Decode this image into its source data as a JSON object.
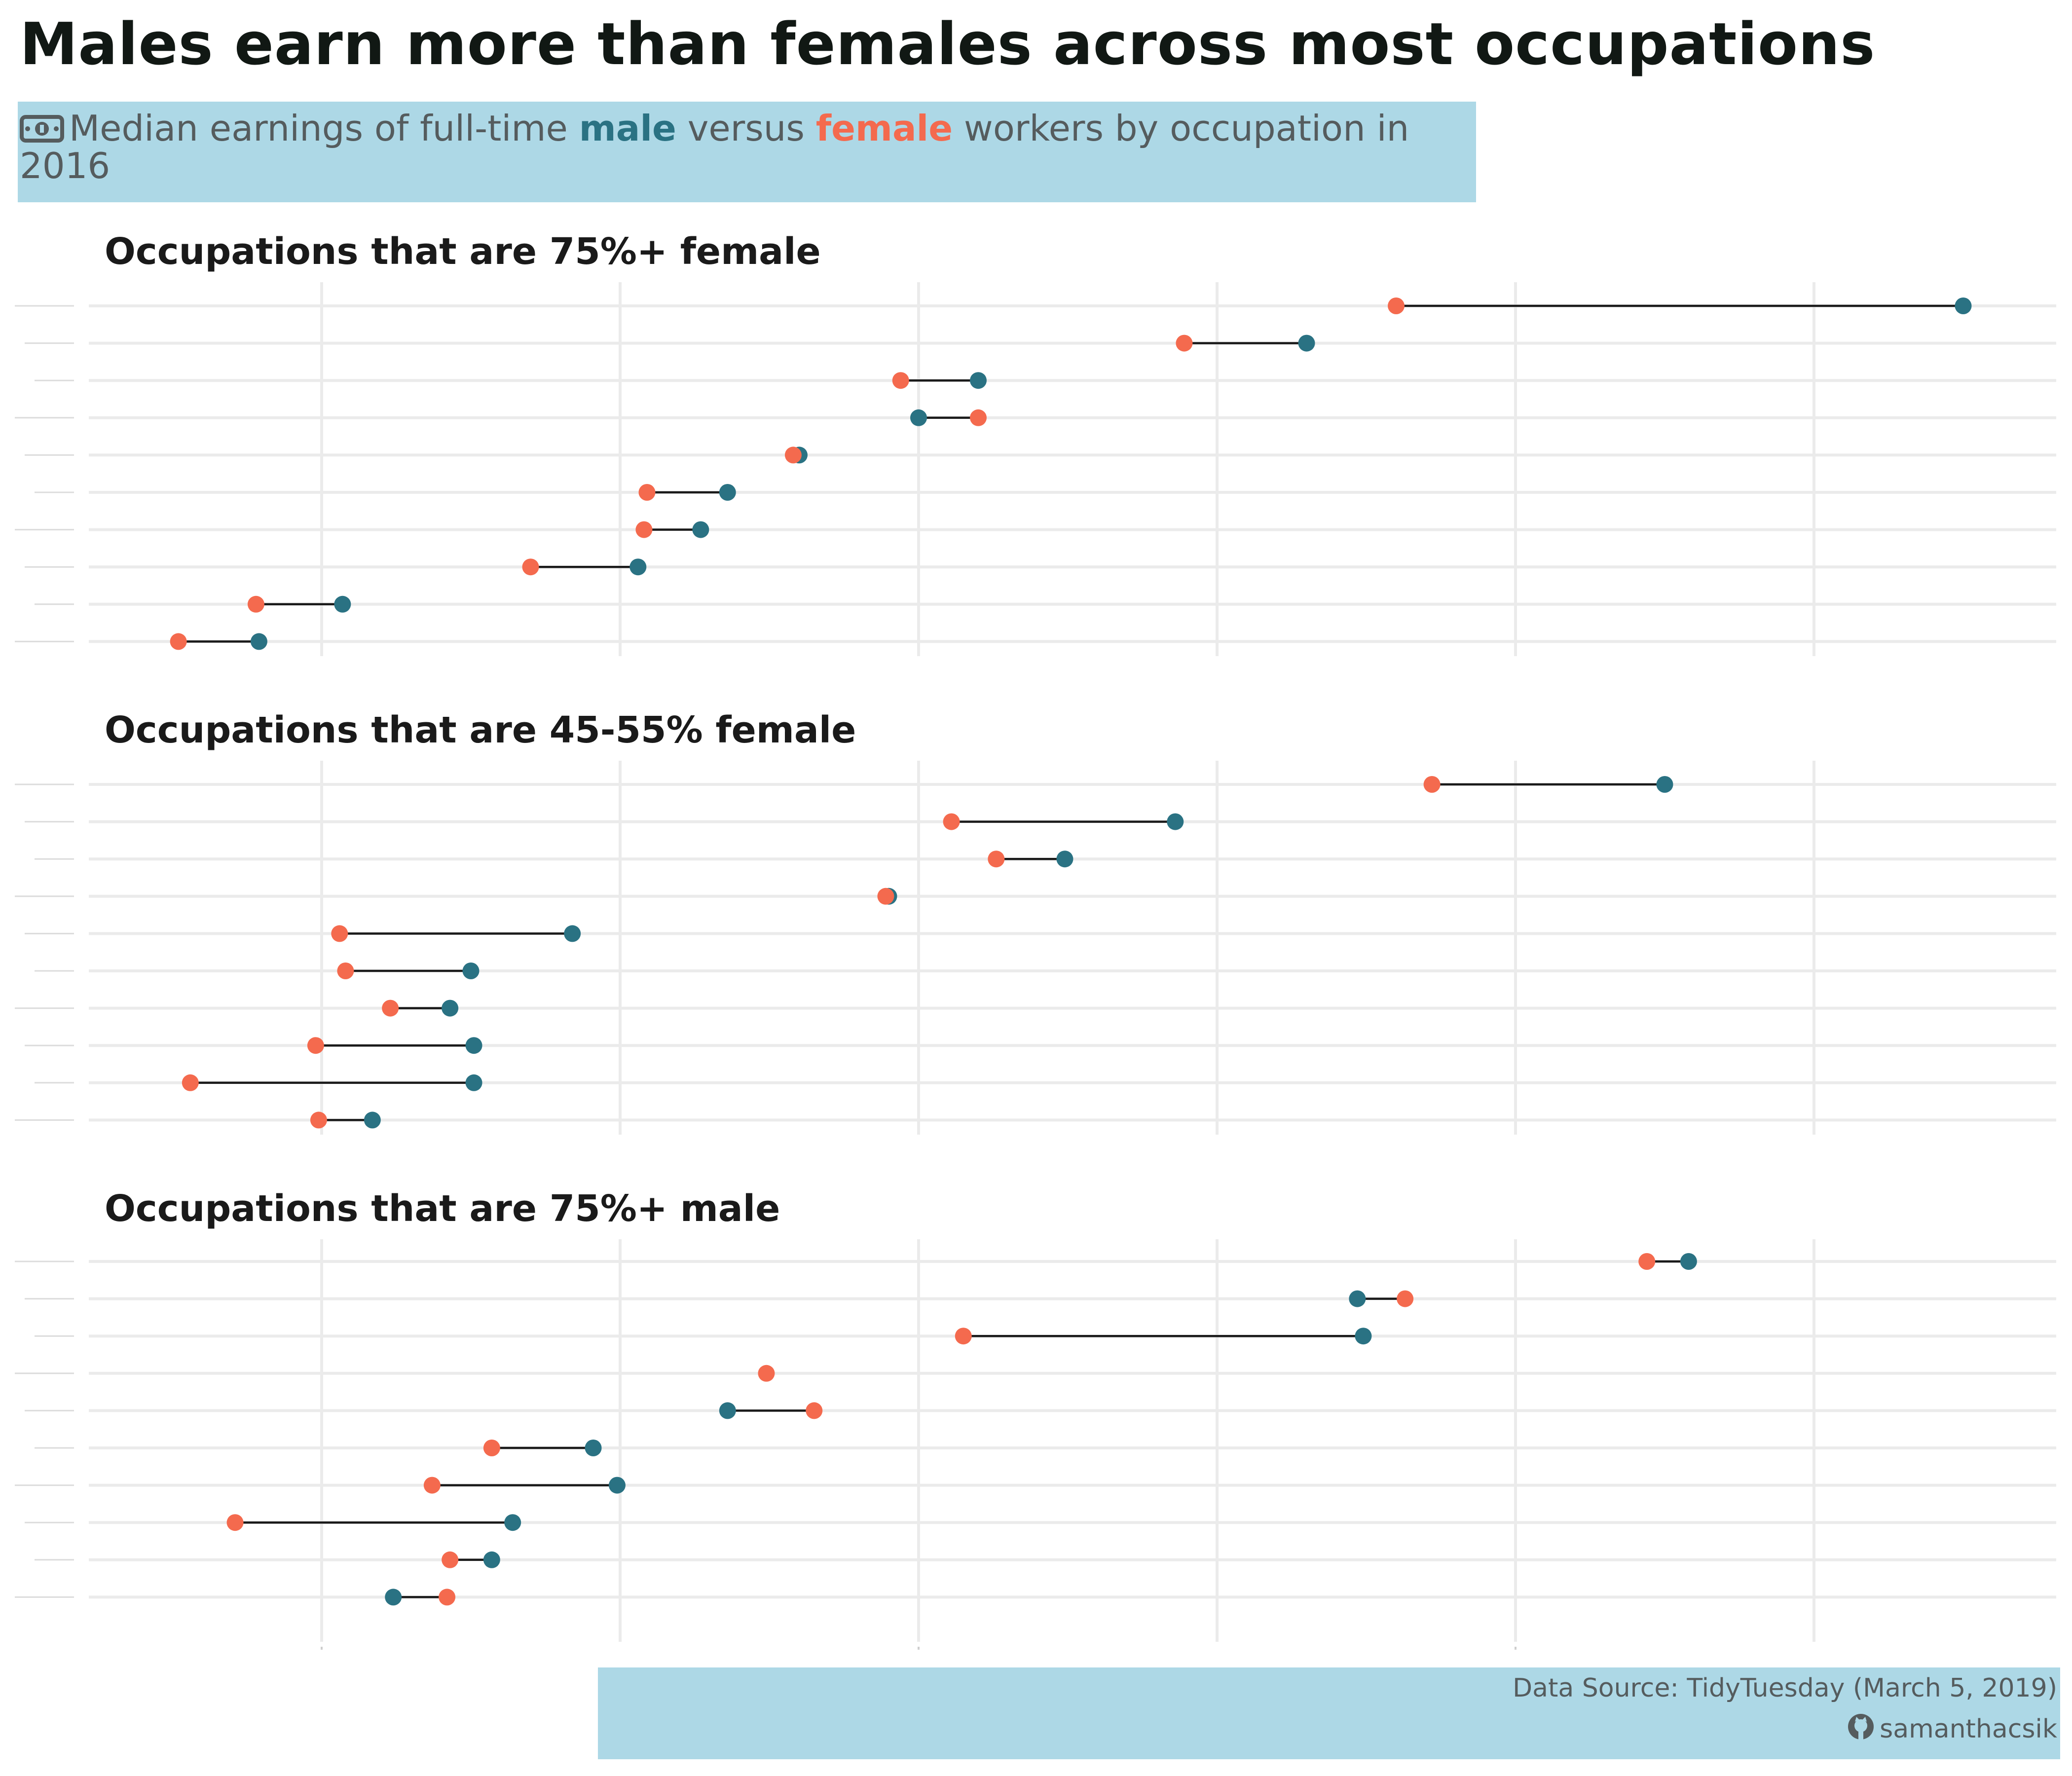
{
  "title": "Males earn more than females across most occupations",
  "subtitle": {
    "icon": "money-bill-icon",
    "part1": "Median earnings of full-time ",
    "male_word": "male",
    "part2": " versus ",
    "female_word": "female",
    "part3": " workers by occupation in 2016"
  },
  "caption": {
    "source": "Data Source: TidyTuesday (March 5, 2019)",
    "icon": "github-icon",
    "handle": "samanthacsik"
  },
  "colors": {
    "male": "#2a7283",
    "female": "#f46a4e",
    "band": "#add8e6",
    "grid": "#ebebeb",
    "segment": "#1a1a1a"
  },
  "chart_data": [
    {
      "type": "dumbbell",
      "title": "Occupations that are 75%+ female",
      "xlim": [
        0.8,
        7.35
      ],
      "series": [
        {
          "name": "male",
          "values": [
            6.5,
            4.3,
            3.2,
            3.0,
            2.6,
            2.36,
            2.27,
            2.06,
            1.07,
            0.79
          ]
        },
        {
          "name": "female",
          "values": [
            4.6,
            3.89,
            2.94,
            3.2,
            2.58,
            2.09,
            2.08,
            1.7,
            0.78,
            0.52
          ]
        }
      ]
    },
    {
      "type": "dumbbell",
      "title": "Occupations that are 45-55% female",
      "xlim": [
        0.8,
        7.35
      ],
      "series": [
        {
          "name": "male",
          "values": [
            5.5,
            3.86,
            3.49,
            2.9,
            1.84,
            1.5,
            1.43,
            1.51,
            1.51,
            1.17
          ]
        },
        {
          "name": "female",
          "values": [
            4.72,
            3.11,
            3.26,
            2.89,
            1.06,
            1.08,
            1.23,
            0.98,
            0.56,
            0.99
          ]
        }
      ]
    },
    {
      "type": "dumbbell",
      "title": "Occupations that are 75%+ male",
      "xlim": [
        0.8,
        7.35
      ],
      "series": [
        {
          "name": "male",
          "values": [
            5.58,
            4.47,
            4.49,
            null,
            2.36,
            1.91,
            1.99,
            1.64,
            1.57,
            1.24
          ]
        },
        {
          "name": "female",
          "values": [
            5.44,
            4.63,
            3.15,
            2.49,
            2.65,
            1.57,
            1.37,
            0.71,
            1.43,
            1.42
          ]
        }
      ]
    }
  ]
}
